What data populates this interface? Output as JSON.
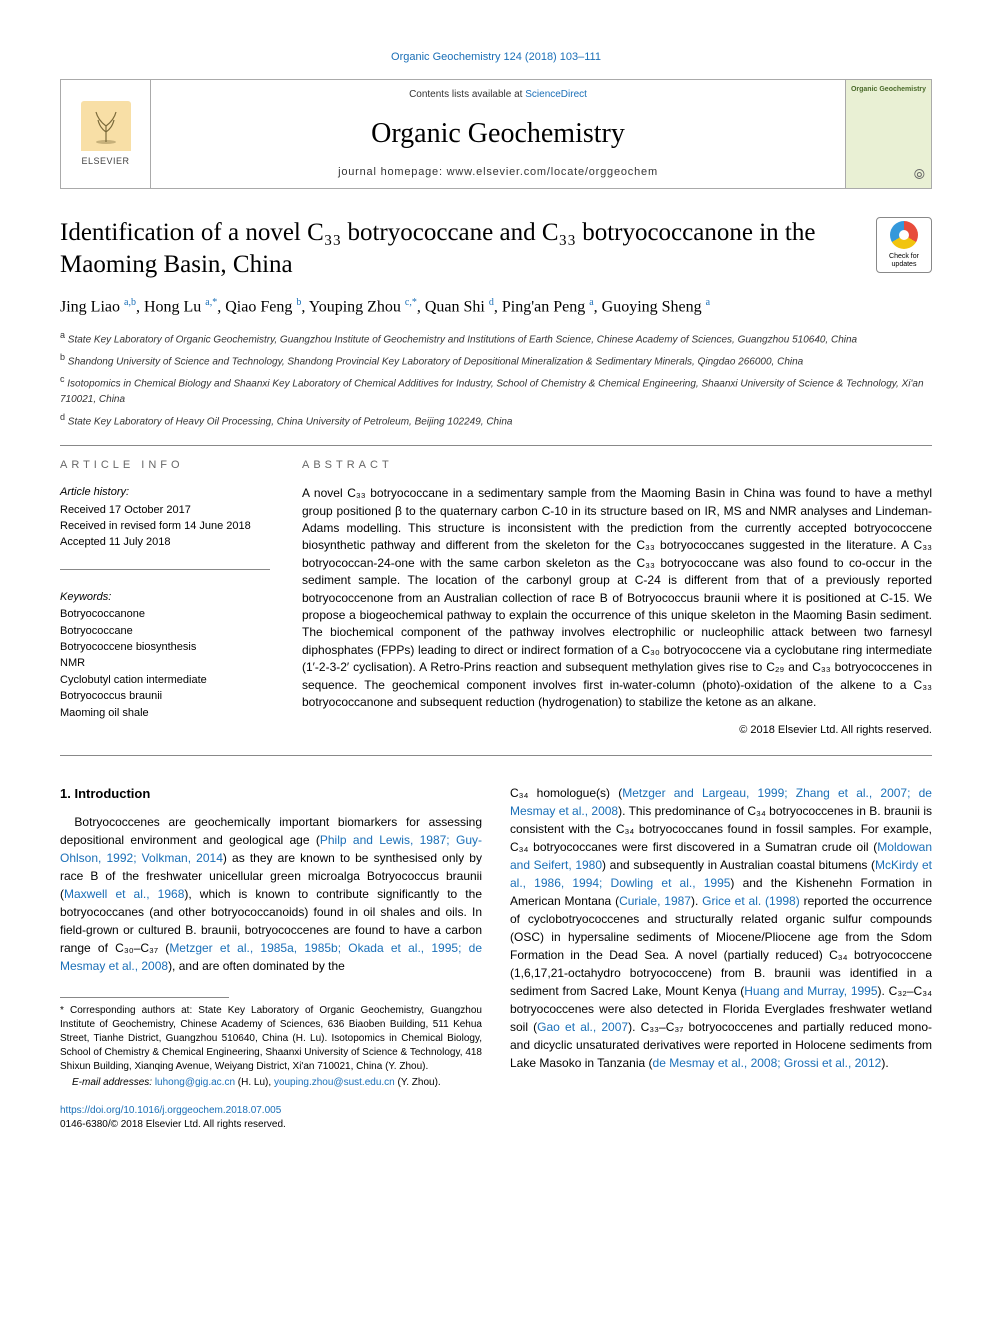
{
  "top_ref": "Organic Geochemistry 124 (2018) 103–111",
  "banner": {
    "contents_prefix": "Contents lists available at ",
    "contents_link": "ScienceDirect",
    "journal_title": "Organic Geochemistry",
    "homepage_prefix": "journal homepage: ",
    "homepage_url": "www.elsevier.com/locate/orggeochem",
    "elsevier_word": "ELSEVIER",
    "cover_title": "Organic Geochemistry"
  },
  "check_updates_label": "Check for updates",
  "title": "Identification of a novel C₃₃ botryococcane and C₃₃ botryococcanone in the Maoming Basin, China",
  "authors_html": "Jing Liao <sup>a,b</sup>, Hong Lu <sup>a,*</sup>, Qiao Feng <sup>b</sup>, Youping Zhou <sup>c,*</sup>, Quan Shi <sup>d</sup>, Ping'an Peng <sup>a</sup>, Guoying Sheng <sup>a</sup>",
  "affiliations": [
    "a State Key Laboratory of Organic Geochemistry, Guangzhou Institute of Geochemistry and Institutions of Earth Science, Chinese Academy of Sciences, Guangzhou 510640, China",
    "b Shandong University of Science and Technology, Shandong Provincial Key Laboratory of Depositional Mineralization & Sedimentary Minerals, Qingdao 266000, China",
    "c Isotopomics in Chemical Biology and Shaanxi Key Laboratory of Chemical Additives for Industry, School of Chemistry & Chemical Engineering, Shaanxi University of Science & Technology, Xi'an 710021, China",
    "d State Key Laboratory of Heavy Oil Processing, China University of Petroleum, Beijing 102249, China"
  ],
  "article_info": {
    "header": "ARTICLE INFO",
    "history_title": "Article history:",
    "history": [
      "Received 17 October 2017",
      "Received in revised form 14 June 2018",
      "Accepted 11 July 2018"
    ],
    "keywords_title": "Keywords:",
    "keywords": [
      "Botryococcanone",
      "Botryococcane",
      "Botryococcene biosynthesis",
      "NMR",
      "Cyclobutyl cation intermediate",
      "Botryococcus braunii",
      "Maoming oil shale"
    ]
  },
  "abstract": {
    "header": "ABSTRACT",
    "text": "A novel C₃₃ botryococcane in a sedimentary sample from the Maoming Basin in China was found to have a methyl group positioned β to the quaternary carbon C-10 in its structure based on IR, MS and NMR analyses and Lindeman-Adams modelling. This structure is inconsistent with the prediction from the currently accepted botryococcene biosynthetic pathway and different from the skeleton for the C₃₃ botryococcanes suggested in the literature. A C₃₃ botryococcan-24-one with the same carbon skeleton as the C₃₃ botryococcane was also found to co-occur in the sediment sample. The location of the carbonyl group at C-24 is different from that of a previously reported botryococcenone from an Australian collection of race B of Botryococcus braunii where it is positioned at C-15. We propose a biogeochemical pathway to explain the occurrence of this unique skeleton in the Maoming Basin sediment. The biochemical component of the pathway involves electrophilic or nucleophilic attack between two farnesyl diphosphates (FPPs) leading to direct or indirect formation of a C₃₀ botryococcene via a cyclobutane ring intermediate (1′-2-3-2′ cyclisation). A Retro-Prins reaction and subsequent methylation gives rise to C₂₉ and C₃₃ botryococcenes in sequence. The geochemical component involves first in-water-column (photo)-oxidation of the alkene to a C₃₃ botryococcanone and subsequent reduction (hydrogenation) to stabilize the ketone as an alkane.",
    "copyright": "© 2018 Elsevier Ltd. All rights reserved."
  },
  "intro": {
    "heading": "1. Introduction",
    "col1_p1_a": "Botryococcenes are geochemically important biomarkers for assessing depositional environment and geological age (",
    "col1_ref1": "Philp and Lewis, 1987; Guy-Ohlson, 1992; Volkman, 2014",
    "col1_p1_b": ") as they are known to be synthesised only by race B of the freshwater unicellular green microalga Botryococcus braunii (",
    "col1_ref2": "Maxwell et al., 1968",
    "col1_p1_c": "), which is known to contribute significantly to the botryococcanes (and other botryococcanoids) found in oil shales and oils. In field-grown or cultured B. braunii, botryococcenes are found to have a carbon range of C₃₀–C₃₇ (",
    "col1_ref3": "Metzger et al., 1985a, 1985b; Okada et al., 1995; de Mesmay et al., 2008",
    "col1_p1_d": "), and are often dominated by the",
    "col2_p1_a": "C₃₄ homologue(s) (",
    "col2_ref1": "Metzger and Largeau, 1999; Zhang et al., 2007; de Mesmay et al., 2008",
    "col2_p1_b": "). This predominance of C₃₄ botryococcenes in B. braunii is consistent with the C₃₄ botryococcanes found in fossil samples. For example, C₃₄ botryococcanes were first discovered in a Sumatran crude oil (",
    "col2_ref2": "Moldowan and Seifert, 1980",
    "col2_p1_c": ") and subsequently in Australian coastal bitumens (",
    "col2_ref3": "McKirdy et al., 1986, 1994; Dowling et al., 1995",
    "col2_p1_d": ") and the Kishenehn Formation in American Montana (",
    "col2_ref4": "Curiale, 1987",
    "col2_p1_e": "). ",
    "col2_ref5": "Grice et al. (1998)",
    "col2_p1_f": " reported the occurrence of cyclobotryococcenes and structurally related organic sulfur compounds (OSC) in hypersaline sediments of Miocene/Pliocene age from the Sdom Formation in the Dead Sea. A novel (partially reduced) C₃₄ botryococcene (1,6,17,21-octahydro botryococcene) from B. braunii was identified in a sediment from Sacred Lake, Mount Kenya (",
    "col2_ref6": "Huang and Murray, 1995",
    "col2_p1_g": "). C₃₂–C₃₄ botryococcenes were also detected in Florida Everglades freshwater wetland soil (",
    "col2_ref7": "Gao et al., 2007",
    "col2_p1_h": "). C₃₃–C₃₇ botryococcenes and partially reduced mono- and dicyclic unsaturated derivatives were reported in Holocene sediments from Lake Masoko in Tanzania (",
    "col2_ref8": "de Mesmay et al., 2008; Grossi et al., 2012",
    "col2_p1_i": ")."
  },
  "footnote": {
    "corr_label": "* Corresponding authors at: State Key Laboratory of Organic Geochemistry, Guangzhou Institute of Geochemistry, Chinese Academy of Sciences, 636 Biaoben Building, 511 Kehua Street, Tianhe District, Guangzhou 510640, China (H. Lu). Isotopomics in Chemical Biology, School of Chemistry & Chemical Engineering, Shaanxi University of Science & Technology, 418 Shixun Building, Xianqing Avenue, Weiyang District, Xi'an 710021, China (Y. Zhou).",
    "email_label": "E-mail addresses: ",
    "email1": "luhong@gig.ac.cn",
    "email1_who": " (H. Lu), ",
    "email2": "youping.zhou@sust.edu.cn",
    "email2_who": " (Y. Zhou)."
  },
  "doi": {
    "url": "https://doi.org/10.1016/j.orggeochem.2018.07.005",
    "issn_line": "0146-6380/© 2018 Elsevier Ltd. All rights reserved."
  },
  "colors": {
    "link": "#1a6fb7",
    "elsevier_bg": "#f8dfa6",
    "cover_bg": "#e9f0d4",
    "rule": "#888888"
  }
}
